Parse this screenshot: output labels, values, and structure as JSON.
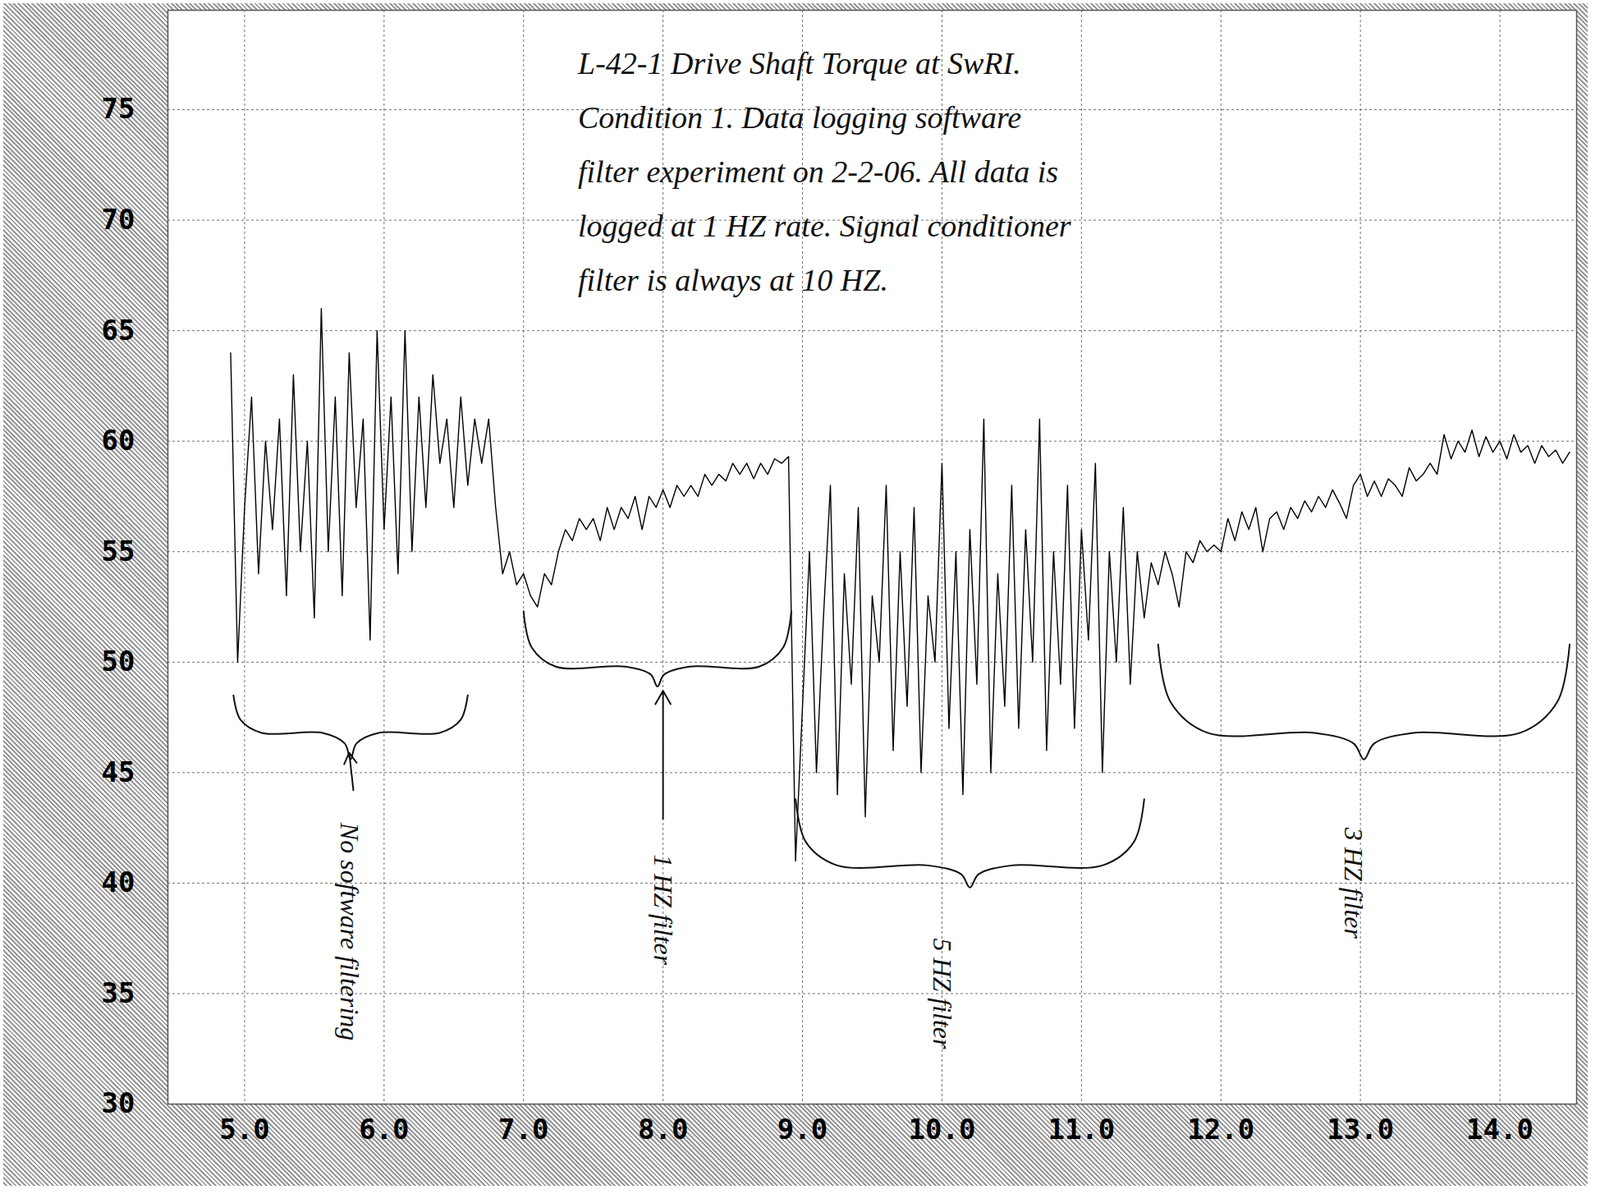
{
  "chart_data": {
    "type": "line",
    "title": "L-42-1 Drive Shaft Torque at SwRI.",
    "annotations": [
      "Condition 1. Data logging software filter experiment on 2-2-06. All data is logged at 1 HZ rate. Signal conditioner filter is always at 10 HZ.",
      "No software filtering",
      "1 HZ filter",
      "5 HZ filter",
      "3 HZ filter"
    ],
    "x": [
      4.9,
      4.95,
      5.0,
      5.05,
      5.1,
      5.15,
      5.2,
      5.25,
      5.3,
      5.35,
      5.4,
      5.45,
      5.5,
      5.55,
      5.6,
      5.65,
      5.7,
      5.75,
      5.8,
      5.85,
      5.9,
      5.95,
      6.0,
      6.05,
      6.1,
      6.15,
      6.2,
      6.25,
      6.3,
      6.35,
      6.4,
      6.45,
      6.5,
      6.55,
      6.6,
      6.65,
      6.7,
      6.75,
      6.8,
      6.85,
      6.9,
      6.95,
      7.0,
      7.05,
      7.1,
      7.15,
      7.2,
      7.25,
      7.3,
      7.35,
      7.4,
      7.45,
      7.5,
      7.55,
      7.6,
      7.65,
      7.7,
      7.75,
      7.8,
      7.85,
      7.9,
      7.95,
      8.0,
      8.05,
      8.1,
      8.15,
      8.2,
      8.25,
      8.3,
      8.35,
      8.4,
      8.45,
      8.5,
      8.55,
      8.6,
      8.65,
      8.7,
      8.75,
      8.8,
      8.85,
      8.9,
      8.95,
      9.0,
      9.05,
      9.1,
      9.15,
      9.2,
      9.25,
      9.3,
      9.35,
      9.4,
      9.45,
      9.5,
      9.55,
      9.6,
      9.65,
      9.7,
      9.75,
      9.8,
      9.85,
      9.9,
      9.95,
      10.0,
      10.05,
      10.1,
      10.15,
      10.2,
      10.25,
      10.3,
      10.35,
      10.4,
      10.45,
      10.5,
      10.55,
      10.6,
      10.65,
      10.7,
      10.75,
      10.8,
      10.85,
      10.9,
      10.95,
      11.0,
      11.05,
      11.1,
      11.15,
      11.2,
      11.25,
      11.3,
      11.35,
      11.4,
      11.45,
      11.5,
      11.55,
      11.6,
      11.65,
      11.7,
      11.75,
      11.8,
      11.85,
      11.9,
      11.95,
      12.0,
      12.05,
      12.1,
      12.15,
      12.2,
      12.25,
      12.3,
      12.35,
      12.4,
      12.45,
      12.5,
      12.55,
      12.6,
      12.65,
      12.7,
      12.75,
      12.8,
      12.85,
      12.9,
      12.95,
      13.0,
      13.05,
      13.1,
      13.15,
      13.2,
      13.25,
      13.3,
      13.35,
      13.4,
      13.45,
      13.5,
      13.55,
      13.6,
      13.65,
      13.7,
      13.75,
      13.8,
      13.85,
      13.9,
      13.95,
      14.0,
      14.05,
      14.1,
      14.15,
      14.2,
      14.25,
      14.3,
      14.35,
      14.4,
      14.45,
      14.5
    ],
    "values": [
      64,
      50,
      57,
      62,
      54,
      60,
      56,
      61,
      53,
      63,
      55,
      60,
      52,
      66,
      55,
      62,
      53,
      64,
      57,
      61,
      51,
      65,
      56,
      62,
      54,
      65,
      55,
      62,
      57,
      63,
      59,
      61,
      57,
      62,
      58,
      61,
      59,
      61,
      57,
      54,
      55,
      53.5,
      54,
      53,
      52.5,
      54,
      53.5,
      55,
      56,
      55.5,
      56.5,
      56,
      56.5,
      55.5,
      57,
      56,
      57,
      56.5,
      57.5,
      56,
      57.5,
      57,
      57.8,
      57,
      58,
      57.5,
      58,
      57.5,
      58.5,
      58,
      58.5,
      58.2,
      59,
      58.5,
      59,
      58.3,
      59,
      58.5,
      59.2,
      59,
      59.3,
      41,
      48,
      55,
      45,
      52,
      58,
      44,
      54,
      49,
      57,
      43,
      53,
      50,
      58,
      46,
      55,
      48,
      57,
      45,
      53,
      50,
      59,
      47,
      55,
      44,
      56,
      49,
      61,
      45,
      54,
      48,
      58,
      47,
      56,
      50,
      61,
      46,
      55,
      49,
      58,
      47,
      56,
      51,
      59,
      45,
      55,
      50,
      57,
      49,
      55,
      52,
      54.5,
      53.5,
      55,
      54,
      52.5,
      55,
      54.5,
      55.5,
      55,
      55.3,
      55,
      56.5,
      55.5,
      56.8,
      56,
      57,
      55,
      56.5,
      56.8,
      56,
      57,
      56.5,
      57.3,
      56.8,
      57.5,
      57,
      57.8,
      57.2,
      56.5,
      58,
      58.5,
      57.5,
      58.2,
      57.5,
      58.3,
      58,
      57.5,
      58.8,
      58.2,
      58.5,
      59,
      58.5,
      60.3,
      59.2,
      60,
      59.5,
      60.5,
      59.3,
      60.2,
      59.5,
      60,
      59.2,
      60.3,
      59.5,
      59.8,
      59,
      59.8,
      59.3,
      59.6,
      59,
      59.5
    ],
    "color": "#000000",
    "xlim": [
      4.45,
      14.55
    ],
    "ylim": [
      30,
      79.5
    ],
    "xticks": [
      5,
      6,
      7,
      8,
      9,
      10,
      11,
      12,
      13,
      14
    ],
    "yticks": [
      30,
      35,
      40,
      45,
      50,
      55,
      60,
      65,
      70,
      75
    ],
    "grid": true
  }
}
